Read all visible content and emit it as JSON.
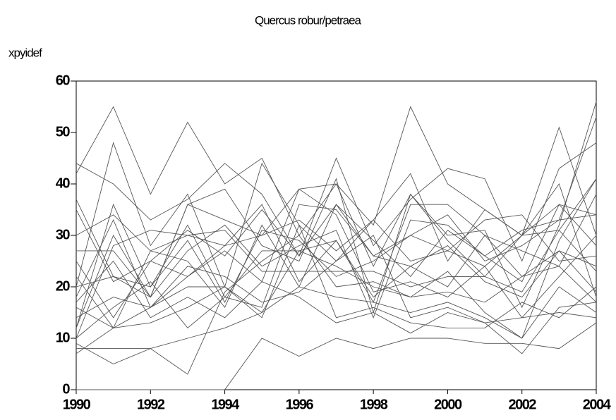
{
  "chart_data": {
    "type": "line",
    "title": "Quercus robur/petraea",
    "y_label": "xpyidef",
    "x": [
      1990,
      1991,
      1992,
      1993,
      1994,
      1995,
      1996,
      1997,
      1998,
      1999,
      2000,
      2001,
      2002,
      2003,
      2004
    ],
    "xlim": [
      1990,
      2004
    ],
    "xticks": [
      1990,
      1992,
      1994,
      1996,
      1998,
      2000,
      2002,
      2004
    ],
    "ylim": [
      0,
      60
    ],
    "yticks": [
      0,
      10,
      20,
      30,
      40,
      50,
      60
    ],
    "color": "#555555",
    "grid": false,
    "series": [
      {
        "values": [
          0,
          0,
          0,
          0,
          0,
          10,
          6.5,
          10,
          8,
          10,
          10,
          9,
          9,
          8,
          13
        ]
      },
      {
        "values": [
          42,
          55,
          38,
          52,
          40,
          45,
          30,
          40,
          32,
          55,
          40,
          35,
          30,
          51,
          30
        ]
      },
      {
        "values": [
          44,
          40,
          33,
          37,
          44,
          38,
          26,
          45,
          28,
          37,
          43,
          41,
          25,
          43,
          48
        ]
      },
      {
        "values": [
          37,
          22,
          18,
          36,
          39,
          28,
          25,
          41,
          15,
          38,
          30,
          31,
          16,
          32,
          56
        ]
      },
      {
        "values": [
          20,
          48,
          28,
          38,
          20,
          44,
          32,
          25,
          33,
          42,
          25,
          35,
          30,
          40,
          18
        ]
      },
      {
        "values": [
          9,
          5,
          8,
          3,
          19,
          25,
          30,
          20,
          21,
          18,
          23,
          15,
          10,
          29,
          41
        ]
      },
      {
        "values": [
          16,
          12,
          27,
          25,
          16,
          32,
          20,
          36,
          26,
          30,
          34,
          25,
          28,
          33,
          53
        ]
      },
      {
        "values": [
          12,
          36,
          20,
          32,
          18,
          16,
          36,
          35,
          26,
          24,
          20,
          30,
          22,
          24,
          17
        ]
      },
      {
        "values": [
          10,
          16,
          21,
          12,
          18,
          27,
          27,
          29,
          18,
          24,
          28,
          21,
          18,
          27,
          24
        ]
      },
      {
        "values": [
          22,
          12,
          16,
          22,
          28,
          30,
          39,
          40,
          24,
          38,
          29,
          22,
          30,
          31,
          41
        ]
      },
      {
        "values": [
          27,
          27,
          18,
          36,
          33,
          30,
          33,
          27,
          33,
          25,
          27,
          24,
          30,
          36,
          34
        ]
      },
      {
        "values": [
          14,
          18,
          16,
          24,
          22,
          17,
          19,
          25,
          30,
          14,
          16,
          13,
          7,
          16,
          17
        ]
      },
      {
        "values": [
          7,
          12,
          13,
          16,
          20,
          14,
          32,
          14,
          16,
          13,
          12,
          12,
          17,
          14,
          20
        ]
      },
      {
        "values": [
          8,
          8,
          8,
          10,
          12,
          15,
          20,
          18,
          17,
          15,
          17,
          14,
          10,
          20,
          15
        ]
      },
      {
        "values": [
          20,
          22,
          20,
          29,
          17,
          31,
          29,
          22,
          25,
          30,
          27,
          33,
          34,
          25,
          26
        ]
      },
      {
        "values": [
          30,
          34,
          27,
          30,
          28,
          36,
          21,
          29,
          17,
          36,
          36,
          30,
          27,
          24,
          38
        ]
      },
      {
        "values": [
          35,
          21,
          25,
          22,
          27,
          21,
          39,
          34,
          19,
          21,
          18,
          24,
          14,
          22,
          30
        ]
      },
      {
        "values": [
          18,
          33,
          16,
          20,
          20,
          15,
          27,
          24,
          20,
          18,
          19,
          17,
          22,
          27,
          19
        ]
      },
      {
        "values": [
          17,
          25,
          14,
          18,
          14,
          21,
          18,
          13,
          15,
          11,
          15,
          13,
          14,
          15,
          14
        ]
      },
      {
        "values": [
          10,
          28,
          31,
          30,
          31,
          23,
          23,
          23,
          23,
          20,
          22,
          22,
          19,
          31,
          23
        ]
      },
      {
        "values": [
          12,
          30,
          18,
          27,
          32,
          24,
          28,
          31,
          14,
          33,
          32,
          26,
          31,
          33,
          34
        ]
      },
      {
        "values": [
          25,
          14,
          25,
          31,
          26,
          35,
          26,
          36,
          29,
          22,
          31,
          26,
          21,
          36,
          28
        ]
      }
    ]
  }
}
